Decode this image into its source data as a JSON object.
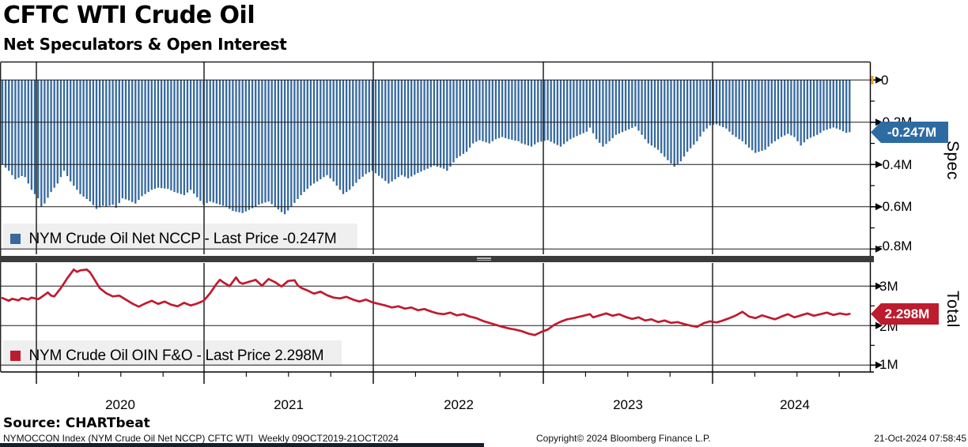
{
  "header": {
    "title": "CFTC WTI Crude Oil",
    "subtitle": "Net Speculators & Open Interest"
  },
  "panels": {
    "spec": {
      "axis_label": "Spec",
      "legend": "NYM Crude Oil Net NCCP - Last Price -0.247M",
      "last_price_label": "-0.247M",
      "ticks": [
        "0",
        "-0.2M",
        "-0.4M",
        "-0.6M",
        "-0.8M"
      ]
    },
    "total": {
      "axis_label": "Total",
      "legend": "NYM Crude Oil OIN F&O - Last Price 2.298M",
      "last_price_label": "2.298M",
      "ticks": [
        "3M",
        "2M",
        "1M"
      ]
    }
  },
  "x_axis": {
    "years": [
      "2020",
      "2021",
      "2022",
      "2023",
      "2024"
    ]
  },
  "source_line": "Source: CHARTbeat",
  "footer": {
    "left": "NYMOCCON Index (NYM Crude Oil Net NCCP) CFTC WTI  Weekly 09OCT2019-21OCT2024",
    "center": "Copyright© 2024 Bloomberg Finance L.P.",
    "right": "21-Oct-2024 07:58:45"
  },
  "colors": {
    "bar_blue": "#35699f",
    "badge_blue": "#2d6ba3",
    "line_red": "#c01a30",
    "badge_red": "#bd1b2e",
    "legend_bg": "#efefef",
    "separator": "#3b3b3b",
    "grid": "#1a1a1a",
    "marker_amber": "#e8a33d"
  },
  "chart_data": [
    {
      "type": "bar",
      "name": "NYM Crude Oil Net NCCP",
      "panel": "Spec",
      "units": "millions of contracts",
      "frequency": "weekly",
      "start": "09OCT2019",
      "end": "21OCT2024",
      "weeks": 262,
      "last": -0.247,
      "ylim": [
        -0.85,
        0.02
      ],
      "tick_values": [
        0,
        -0.2,
        -0.4,
        -0.6,
        -0.8
      ],
      "minor_tick_values": [
        -0.1,
        -0.3,
        -0.5,
        -0.7
      ],
      "keypoints_week_value": [
        [
          0,
          -0.4
        ],
        [
          2,
          -0.43
        ],
        [
          4,
          -0.47
        ],
        [
          6,
          -0.455
        ],
        [
          7,
          -0.46
        ],
        [
          9,
          -0.52
        ],
        [
          11,
          -0.56
        ],
        [
          12,
          -0.6
        ],
        [
          13,
          -0.585
        ],
        [
          15,
          -0.53
        ],
        [
          17,
          -0.49
        ],
        [
          19,
          -0.43
        ],
        [
          21,
          -0.48
        ],
        [
          24,
          -0.54
        ],
        [
          27,
          -0.575
        ],
        [
          29,
          -0.61
        ],
        [
          31,
          -0.595
        ],
        [
          32,
          -0.6
        ],
        [
          34,
          -0.59
        ],
        [
          35,
          -0.605
        ],
        [
          37,
          -0.56
        ],
        [
          39,
          -0.57
        ],
        [
          41,
          -0.585
        ],
        [
          43,
          -0.55
        ],
        [
          46,
          -0.52
        ],
        [
          48,
          -0.51
        ],
        [
          51,
          -0.515
        ],
        [
          53,
          -0.53
        ],
        [
          56,
          -0.545
        ],
        [
          58,
          -0.52
        ],
        [
          60,
          -0.555
        ],
        [
          62,
          -0.59
        ],
        [
          64,
          -0.575
        ],
        [
          67,
          -0.59
        ],
        [
          69,
          -0.6
        ],
        [
          71,
          -0.62
        ],
        [
          74,
          -0.63
        ],
        [
          76,
          -0.615
        ],
        [
          79,
          -0.59
        ],
        [
          82,
          -0.575
        ],
        [
          84,
          -0.6
        ],
        [
          86,
          -0.625
        ],
        [
          87,
          -0.635
        ],
        [
          89,
          -0.6
        ],
        [
          92,
          -0.545
        ],
        [
          95,
          -0.5
        ],
        [
          98,
          -0.47
        ],
        [
          100,
          -0.45
        ],
        [
          102,
          -0.48
        ],
        [
          105,
          -0.54
        ],
        [
          107,
          -0.52
        ],
        [
          110,
          -0.47
        ],
        [
          112,
          -0.445
        ],
        [
          114,
          -0.43
        ],
        [
          117,
          -0.465
        ],
        [
          119,
          -0.49
        ],
        [
          121,
          -0.47
        ],
        [
          123,
          -0.45
        ],
        [
          125,
          -0.465
        ],
        [
          128,
          -0.44
        ],
        [
          131,
          -0.42
        ],
        [
          133,
          -0.405
        ],
        [
          136,
          -0.42
        ],
        [
          137,
          -0.43
        ],
        [
          140,
          -0.37
        ],
        [
          143,
          -0.34
        ],
        [
          145,
          -0.3
        ],
        [
          147,
          -0.285
        ],
        [
          150,
          -0.3
        ],
        [
          152,
          -0.28
        ],
        [
          154,
          -0.27
        ],
        [
          156,
          -0.28
        ],
        [
          159,
          -0.29
        ],
        [
          160,
          -0.3
        ],
        [
          163,
          -0.315
        ],
        [
          165,
          -0.295
        ],
        [
          168,
          -0.285
        ],
        [
          170,
          -0.3
        ],
        [
          172,
          -0.315
        ],
        [
          175,
          -0.28
        ],
        [
          177,
          -0.265
        ],
        [
          180,
          -0.245
        ],
        [
          181,
          -0.225
        ],
        [
          183,
          -0.28
        ],
        [
          185,
          -0.315
        ],
        [
          187,
          -0.29
        ],
        [
          189,
          -0.26
        ],
        [
          192,
          -0.24
        ],
        [
          195,
          -0.22
        ],
        [
          197,
          -0.26
        ],
        [
          199,
          -0.3
        ],
        [
          202,
          -0.33
        ],
        [
          205,
          -0.38
        ],
        [
          207,
          -0.41
        ],
        [
          209,
          -0.385
        ],
        [
          211,
          -0.34
        ],
        [
          214,
          -0.29
        ],
        [
          216,
          -0.245
        ],
        [
          218,
          -0.215
        ],
        [
          220,
          -0.21
        ],
        [
          223,
          -0.23
        ],
        [
          225,
          -0.26
        ],
        [
          228,
          -0.29
        ],
        [
          230,
          -0.32
        ],
        [
          232,
          -0.345
        ],
        [
          235,
          -0.33
        ],
        [
          237,
          -0.3
        ],
        [
          240,
          -0.27
        ],
        [
          242,
          -0.255
        ],
        [
          244,
          -0.27
        ],
        [
          246,
          -0.31
        ],
        [
          248,
          -0.28
        ],
        [
          251,
          -0.26
        ],
        [
          253,
          -0.24
        ],
        [
          256,
          -0.225
        ],
        [
          258,
          -0.235
        ],
        [
          260,
          -0.25
        ],
        [
          261,
          -0.247
        ]
      ]
    },
    {
      "type": "line",
      "name": "NYM Crude Oil OIN F&O",
      "panel": "Total",
      "units": "millions of contracts",
      "frequency": "weekly",
      "start": "09OCT2019",
      "end": "21OCT2024",
      "weeks": 262,
      "last": 2.298,
      "ylim": [
        0.8,
        3.6
      ],
      "tick_values": [
        3,
        2,
        1
      ],
      "minor_tick_values": [
        2.5,
        1.5
      ],
      "keypoints_week_value": [
        [
          0,
          2.7
        ],
        [
          2,
          2.63
        ],
        [
          3,
          2.68
        ],
        [
          5,
          2.64
        ],
        [
          6,
          2.7
        ],
        [
          8,
          2.66
        ],
        [
          9,
          2.71
        ],
        [
          11,
          2.67
        ],
        [
          12,
          2.72
        ],
        [
          14,
          2.84
        ],
        [
          15,
          2.76
        ],
        [
          16,
          2.74
        ],
        [
          18,
          2.95
        ],
        [
          20,
          3.2
        ],
        [
          22,
          3.42
        ],
        [
          23,
          3.36
        ],
        [
          24,
          3.4
        ],
        [
          26,
          3.42
        ],
        [
          27,
          3.35
        ],
        [
          28,
          3.22
        ],
        [
          30,
          2.95
        ],
        [
          32,
          2.82
        ],
        [
          34,
          2.74
        ],
        [
          36,
          2.76
        ],
        [
          38,
          2.66
        ],
        [
          40,
          2.56
        ],
        [
          42,
          2.48
        ],
        [
          44,
          2.56
        ],
        [
          46,
          2.63
        ],
        [
          48,
          2.55
        ],
        [
          50,
          2.61
        ],
        [
          52,
          2.53
        ],
        [
          54,
          2.49
        ],
        [
          56,
          2.58
        ],
        [
          58,
          2.51
        ],
        [
          60,
          2.56
        ],
        [
          62,
          2.63
        ],
        [
          64,
          2.82
        ],
        [
          66,
          3.06
        ],
        [
          67,
          3.16
        ],
        [
          68,
          3.1
        ],
        [
          70,
          3.0
        ],
        [
          72,
          3.22
        ],
        [
          73,
          3.1
        ],
        [
          74,
          3.06
        ],
        [
          76,
          3.11
        ],
        [
          78,
          3.16
        ],
        [
          80,
          3.01
        ],
        [
          81,
          3.1
        ],
        [
          82,
          3.18
        ],
        [
          84,
          3.1
        ],
        [
          86,
          2.99
        ],
        [
          88,
          3.13
        ],
        [
          90,
          3.15
        ],
        [
          91,
          3.02
        ],
        [
          92,
          2.96
        ],
        [
          94,
          2.89
        ],
        [
          96,
          2.81
        ],
        [
          98,
          2.86
        ],
        [
          100,
          2.77
        ],
        [
          102,
          2.71
        ],
        [
          104,
          2.69
        ],
        [
          106,
          2.73
        ],
        [
          108,
          2.66
        ],
        [
          110,
          2.61
        ],
        [
          112,
          2.66
        ],
        [
          114,
          2.59
        ],
        [
          116,
          2.55
        ],
        [
          118,
          2.51
        ],
        [
          120,
          2.46
        ],
        [
          122,
          2.49
        ],
        [
          124,
          2.43
        ],
        [
          126,
          2.46
        ],
        [
          128,
          2.39
        ],
        [
          130,
          2.42
        ],
        [
          132,
          2.36
        ],
        [
          134,
          2.31
        ],
        [
          136,
          2.29
        ],
        [
          138,
          2.33
        ],
        [
          140,
          2.26
        ],
        [
          142,
          2.29
        ],
        [
          144,
          2.23
        ],
        [
          146,
          2.19
        ],
        [
          148,
          2.12
        ],
        [
          150,
          2.07
        ],
        [
          152,
          2.02
        ],
        [
          154,
          1.97
        ],
        [
          156,
          1.93
        ],
        [
          158,
          1.9
        ],
        [
          160,
          1.86
        ],
        [
          162,
          1.8
        ],
        [
          164,
          1.76
        ],
        [
          166,
          1.84
        ],
        [
          168,
          1.9
        ],
        [
          170,
          2.02
        ],
        [
          172,
          2.1
        ],
        [
          174,
          2.16
        ],
        [
          176,
          2.19
        ],
        [
          178,
          2.23
        ],
        [
          180,
          2.27
        ],
        [
          181,
          2.29
        ],
        [
          182,
          2.21
        ],
        [
          184,
          2.26
        ],
        [
          186,
          2.31
        ],
        [
          188,
          2.25
        ],
        [
          190,
          2.29
        ],
        [
          192,
          2.22
        ],
        [
          194,
          2.17
        ],
        [
          196,
          2.21
        ],
        [
          198,
          2.13
        ],
        [
          200,
          2.16
        ],
        [
          202,
          2.09
        ],
        [
          204,
          2.13
        ],
        [
          206,
          2.07
        ],
        [
          208,
          2.09
        ],
        [
          210,
          2.04
        ],
        [
          212,
          2.0
        ],
        [
          214,
          1.97
        ],
        [
          216,
          2.06
        ],
        [
          218,
          2.11
        ],
        [
          220,
          2.08
        ],
        [
          222,
          2.13
        ],
        [
          224,
          2.19
        ],
        [
          226,
          2.26
        ],
        [
          228,
          2.35
        ],
        [
          230,
          2.23
        ],
        [
          232,
          2.19
        ],
        [
          234,
          2.26
        ],
        [
          236,
          2.21
        ],
        [
          238,
          2.16
        ],
        [
          240,
          2.23
        ],
        [
          242,
          2.29
        ],
        [
          244,
          2.21
        ],
        [
          246,
          2.26
        ],
        [
          248,
          2.31
        ],
        [
          250,
          2.25
        ],
        [
          252,
          2.29
        ],
        [
          254,
          2.33
        ],
        [
          256,
          2.27
        ],
        [
          258,
          2.31
        ],
        [
          260,
          2.28
        ],
        [
          261,
          2.298
        ]
      ]
    }
  ]
}
